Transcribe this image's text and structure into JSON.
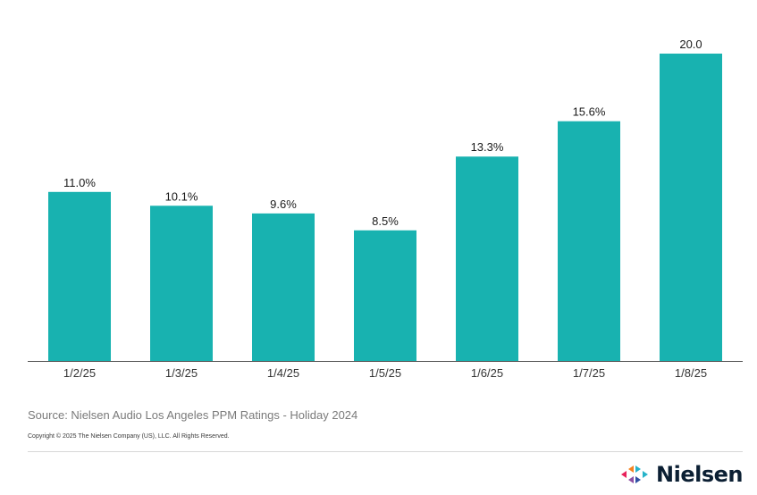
{
  "chart_data": {
    "type": "bar",
    "categories": [
      "1/2/25",
      "1/3/25",
      "1/4/25",
      "1/5/25",
      "1/6/25",
      "1/7/25",
      "1/8/25"
    ],
    "values": [
      11.0,
      10.1,
      9.6,
      8.5,
      13.3,
      15.6,
      20.0
    ],
    "data_labels": [
      "11.0%",
      "10.1%",
      "9.6%",
      "8.5%",
      "13.3%",
      "15.6%",
      "20.0"
    ],
    "title": "",
    "xlabel": "",
    "ylabel": "",
    "ylim": [
      0,
      20.0
    ],
    "grid": false,
    "legend": "none",
    "bar_color": "#18b2b0",
    "axis_color": "#555555"
  },
  "footer": {
    "source": "Source: Nielsen Audio Los Angeles PPM Ratings - Holiday 2024",
    "copyright": "Copyright © 2025 The Nielsen Company (US), LLC. All Rights Reserved."
  },
  "logo": {
    "icon": "nielsen-logo-icon",
    "text": "Nielsen",
    "colors": [
      "#e8215b",
      "#f58220",
      "#8c4fa3",
      "#26b3c9",
      "#2f4fa3"
    ]
  }
}
